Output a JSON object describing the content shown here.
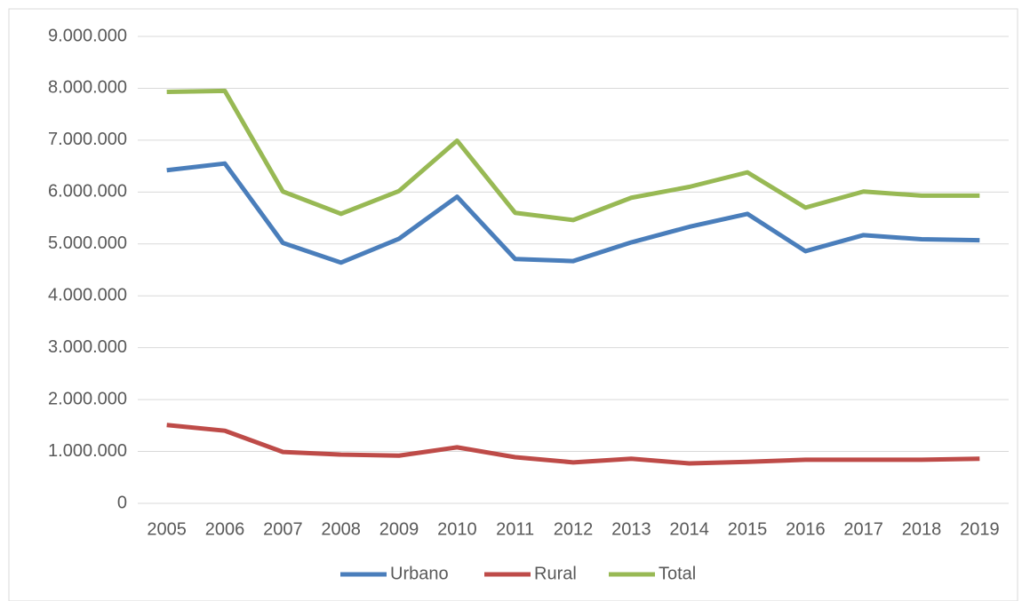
{
  "chart_data": {
    "type": "line",
    "categories": [
      "2005",
      "2006",
      "2007",
      "2008",
      "2009",
      "2010",
      "2011",
      "2012",
      "2013",
      "2014",
      "2015",
      "2016",
      "2017",
      "2018",
      "2019"
    ],
    "series": [
      {
        "name": "Urbano",
        "color": "#4a7ebb",
        "values": [
          6420000,
          6550000,
          5020000,
          4640000,
          5100000,
          5910000,
          4710000,
          4670000,
          5030000,
          5330000,
          5580000,
          4860000,
          5170000,
          5090000,
          5070000
        ]
      },
      {
        "name": "Rural",
        "color": "#be4b48",
        "values": [
          1510000,
          1400000,
          990000,
          940000,
          920000,
          1080000,
          890000,
          790000,
          860000,
          770000,
          800000,
          840000,
          840000,
          840000,
          860000
        ]
      },
      {
        "name": "Total",
        "color": "#98b954",
        "values": [
          7930000,
          7950000,
          6010000,
          5580000,
          6020000,
          6990000,
          5600000,
          5460000,
          5890000,
          6100000,
          6380000,
          5700000,
          6010000,
          5930000,
          5930000
        ]
      }
    ],
    "ylim": [
      0,
      9000000
    ],
    "yticks": [
      0,
      {
        "value": 1000000,
        "label": "1.000.000"
      },
      {
        "value": 2000000,
        "label": "2.000.000"
      },
      {
        "value": 3000000,
        "label": "3.000.000"
      },
      {
        "value": 4000000,
        "label": "4.000.000"
      },
      {
        "value": 5000000,
        "label": "5.000.000"
      },
      {
        "value": 6000000,
        "label": "6.000.000"
      },
      {
        "value": 7000000,
        "label": "7.000.000"
      },
      {
        "value": 8000000,
        "label": "8.000.000"
      },
      {
        "value": 9000000,
        "label": "9.000.000"
      }
    ],
    "grid": true,
    "legend": "bottom"
  }
}
